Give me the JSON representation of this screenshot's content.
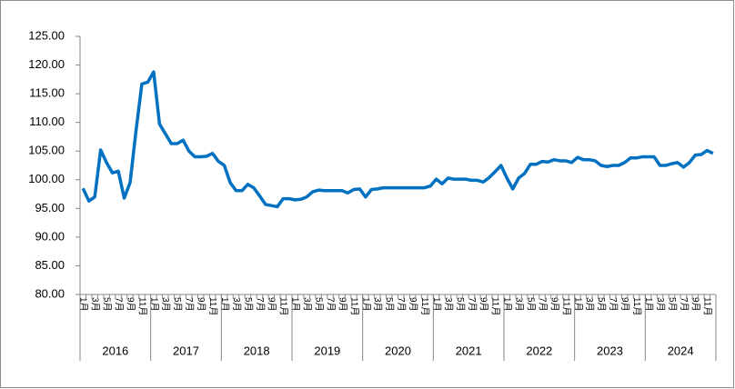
{
  "chart_data": {
    "type": "line",
    "categories": [
      "1月",
      null,
      "3月",
      null,
      "5月",
      null,
      "7月",
      null,
      "9月",
      null,
      "11月",
      null,
      "1月",
      null,
      "3月",
      null,
      "5月",
      null,
      "7月",
      null,
      "9月",
      null,
      "11月",
      null,
      "1月",
      null,
      "3月",
      null,
      "5月",
      null,
      "7月",
      null,
      "9月",
      null,
      "11月",
      null,
      "1月",
      null,
      "3月",
      null,
      "5月",
      null,
      "7月",
      null,
      "9月",
      null,
      "11月",
      null,
      "1月",
      null,
      "3月",
      null,
      "5月",
      null,
      "7月",
      null,
      "9月",
      null,
      "11月",
      null,
      "1月",
      null,
      "3月",
      null,
      "5月",
      null,
      "7月",
      null,
      "9月",
      null,
      "11月",
      null,
      "1月",
      null,
      "3月",
      null,
      "5月",
      null,
      "7月",
      null,
      "9月",
      null,
      "11月",
      null,
      "1月",
      null,
      "3月",
      null,
      "5月",
      null,
      "7月",
      null,
      "9月",
      null,
      "11月",
      null,
      "1月",
      null,
      "3月",
      null,
      "5月",
      null,
      "7月",
      null,
      "9月",
      null,
      "11月",
      null
    ],
    "years": [
      "2016",
      "2017",
      "2018",
      "2019",
      "2020",
      "2021",
      "2022",
      "2023",
      "2024"
    ],
    "color": "#0070c0",
    "values": [
      98.5,
      96.3,
      97.0,
      105.2,
      103.0,
      101.2,
      101.5,
      96.8,
      99.5,
      108.5,
      116.7,
      117.0,
      118.8,
      109.7,
      108.0,
      106.3,
      106.3,
      106.9,
      105.0,
      104.0,
      104.0,
      104.1,
      104.6,
      103.2,
      102.5,
      99.5,
      98.1,
      98.1,
      99.2,
      98.6,
      97.2,
      95.7,
      95.5,
      95.3,
      96.7,
      96.7,
      96.5,
      96.6,
      97.0,
      97.9,
      98.2,
      98.1,
      98.1,
      98.1,
      98.1,
      97.7,
      98.3,
      98.4,
      97.0,
      98.3,
      98.4,
      98.6,
      98.6,
      98.6,
      98.6,
      98.6,
      98.6,
      98.6,
      98.6,
      98.9,
      100.1,
      99.3,
      100.3,
      100.1,
      100.1,
      100.1,
      99.9,
      99.9,
      99.6,
      100.4,
      101.4,
      102.5,
      100.3,
      98.4,
      100.3,
      101.1,
      102.7,
      102.7,
      103.2,
      103.1,
      103.5,
      103.3,
      103.3,
      103.0,
      103.9,
      103.5,
      103.5,
      103.3,
      102.5,
      102.3,
      102.5,
      102.5,
      103.0,
      103.8,
      103.8,
      104.0,
      104.0,
      104.0,
      102.5,
      102.5,
      102.8,
      103.0,
      102.2,
      103.0,
      104.3,
      104.4,
      105.1,
      104.6
    ],
    "ylim": [
      80,
      125
    ],
    "yticks": [
      {
        "value": 80,
        "label": "80.00"
      },
      {
        "value": 85,
        "label": "85.00"
      },
      {
        "value": 90,
        "label": "90.00"
      },
      {
        "value": 95,
        "label": "95.00"
      },
      {
        "value": 100,
        "label": "100.00"
      },
      {
        "value": 105,
        "label": "105.00"
      },
      {
        "value": 110,
        "label": "110.00"
      },
      {
        "value": 115,
        "label": "115.00"
      },
      {
        "value": 120,
        "label": "120.00"
      },
      {
        "value": 125,
        "label": "125.00"
      }
    ],
    "grid": false
  }
}
